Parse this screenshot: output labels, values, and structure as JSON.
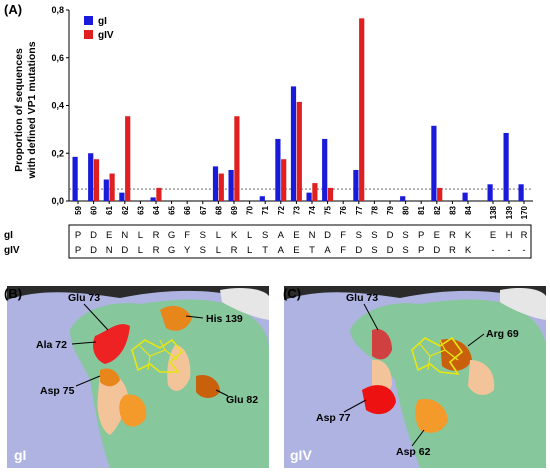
{
  "panel_a": {
    "letter": "(A)",
    "ylabel_line1": "Proportion of sequences",
    "ylabel_line2": "with defined VP1 mutations"
  },
  "chart_data": {
    "type": "bar",
    "categories": [
      "59",
      "60",
      "61",
      "62",
      "63",
      "64",
      "65",
      "66",
      "67",
      "68",
      "69",
      "70",
      "71",
      "72",
      "73",
      "74",
      "75",
      "76",
      "77",
      "78",
      "79",
      "80",
      "81",
      "82",
      "83",
      "84",
      "138",
      "139",
      "170"
    ],
    "series": [
      {
        "name": "gI",
        "color": "#1a1adb",
        "values": [
          0.185,
          0.2,
          0.09,
          0.035,
          0,
          0.015,
          0,
          0,
          0,
          0.145,
          0.13,
          0,
          0.02,
          0.26,
          0.48,
          0.035,
          0.26,
          0,
          0.13,
          0,
          0,
          0.02,
          0,
          0.315,
          0,
          0.035,
          0.07,
          0.285,
          0.07
        ]
      },
      {
        "name": "gIV",
        "color": "#e02020",
        "values": [
          0,
          0.175,
          0.115,
          0.355,
          0,
          0.055,
          0,
          0,
          0,
          0.115,
          0.355,
          0,
          0,
          0.175,
          0.415,
          0.075,
          0.055,
          0,
          0.765,
          0,
          0,
          0,
          0,
          0.055,
          0,
          0,
          0,
          0,
          0
        ]
      }
    ],
    "ylim": [
      0,
      0.8
    ],
    "yticks": [
      "0,0",
      "0,2",
      "0,4",
      "0,6",
      "0,8"
    ],
    "reference_line": 0.05,
    "legend_position": "top-left"
  },
  "alignment": {
    "rows": [
      {
        "label": "gI",
        "residues": [
          "P",
          "D",
          "E",
          "N",
          "L",
          "R",
          "G",
          "F",
          "S",
          "L",
          "K",
          "L",
          "S",
          "A",
          "E",
          "N",
          "D",
          "F",
          "S",
          "S",
          "D",
          "S",
          "P",
          "E",
          "R",
          "K",
          "E",
          "H",
          "R"
        ]
      },
      {
        "label": "gIV",
        "residues": [
          "P",
          "D",
          "N",
          "D",
          "L",
          "R",
          "G",
          "Y",
          "S",
          "L",
          "R",
          "L",
          "T",
          "A",
          "E",
          "T",
          "A",
          "F",
          "D",
          "S",
          "D",
          "S",
          "P",
          "D",
          "R",
          "K",
          "-",
          "-",
          "-"
        ]
      }
    ]
  },
  "panel_b": {
    "letter": "(B)",
    "corner": "gI",
    "labels": [
      "Glu 73",
      "His 139",
      "Ala 72",
      "Asp 75",
      "Glu 82"
    ]
  },
  "panel_c": {
    "letter": "(C)",
    "corner": "gIV",
    "labels": [
      "Glu 73",
      "Arg 69",
      "Asp 77",
      "Asp 62"
    ]
  }
}
